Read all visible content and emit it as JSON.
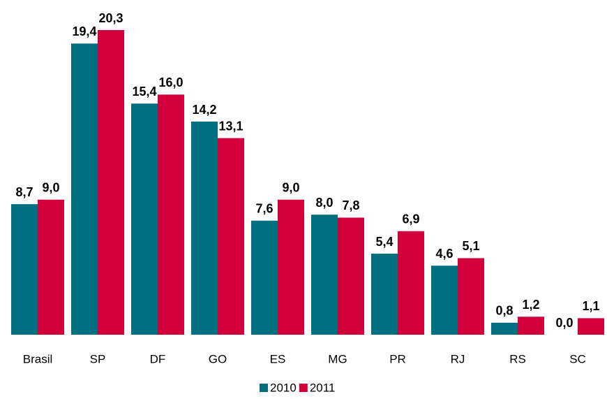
{
  "chart_data": {
    "type": "bar",
    "categories": [
      "Brasil",
      "SP",
      "DF",
      "GO",
      "ES",
      "MG",
      "PR",
      "RJ",
      "RS",
      "SC"
    ],
    "series": [
      {
        "name": "2010",
        "color": "#006f80",
        "values": [
          8.7,
          19.4,
          15.4,
          14.2,
          7.6,
          8.0,
          5.4,
          4.6,
          0.8,
          0.0
        ],
        "value_labels": [
          "8,7",
          "19,4",
          "15,4",
          "14,2",
          "7,6",
          "8,0",
          "5,4",
          "4,6",
          "0,8",
          "0,0"
        ]
      },
      {
        "name": "2011",
        "color": "#d1003a",
        "values": [
          9.0,
          20.3,
          16.0,
          13.1,
          9.0,
          7.8,
          6.9,
          5.1,
          1.2,
          1.1
        ],
        "value_labels": [
          "9,0",
          "20,3",
          "16,0",
          "13,1",
          "9,0",
          "7,8",
          "6,9",
          "5,1",
          "1,2",
          "1,1"
        ]
      }
    ],
    "legend": "bottom"
  }
}
